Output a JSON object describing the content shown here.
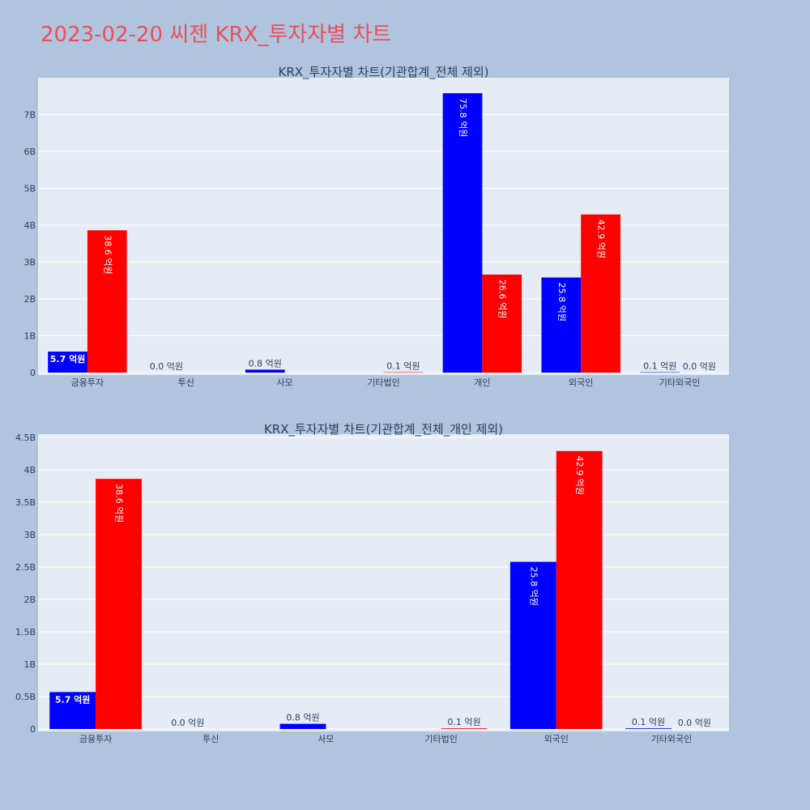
{
  "page_title": "2023-02-20 씨젠 KRX_투자자별 차트",
  "colors": {
    "background": "#b0c4de",
    "plot_bg": "#e5ecf6",
    "buy": "#0000ff",
    "sell": "#ff0000",
    "title": "#e8505b"
  },
  "chart_data": [
    {
      "type": "bar",
      "title": "KRX_투자자별 차트(기관합계_전체 제외)",
      "categories": [
        "금융투자",
        "투신",
        "사모",
        "기타법인",
        "개인",
        "외국인",
        "기타외국인"
      ],
      "ylim": [
        0,
        8000000000
      ],
      "yticks": [
        0,
        1000000000,
        2000000000,
        3000000000,
        4000000000,
        5000000000,
        6000000000,
        7000000000
      ],
      "ytick_labels": [
        "0",
        "1B",
        "2B",
        "3B",
        "4B",
        "5B",
        "6B",
        "7B"
      ],
      "grid": true,
      "series": [
        {
          "color": "#0000ff",
          "values": [
            570000000,
            0,
            80000000,
            0,
            7580000000,
            2580000000,
            10000000
          ],
          "labels": [
            "5.7 억원",
            "0.0 억원",
            "0.8 억원",
            "",
            "75.8 억원",
            "25.8 억원",
            "0.1 억원"
          ]
        },
        {
          "color": "#ff0000",
          "values": [
            3860000000,
            0,
            0,
            10000000,
            2660000000,
            4290000000,
            0
          ],
          "labels": [
            "38.6 억원",
            "",
            "",
            "0.1 억원",
            "26.6 억원",
            "42.9 억원",
            "0.0 억원"
          ]
        }
      ]
    },
    {
      "type": "bar",
      "title": "KRX_투자자별 차트(기관합계_전체_개인 제외)",
      "categories": [
        "금융투자",
        "투신",
        "사모",
        "기타법인",
        "외국인",
        "기타외국인"
      ],
      "ylim": [
        0,
        4550000000
      ],
      "yticks": [
        0,
        500000000,
        1000000000,
        1500000000,
        2000000000,
        2500000000,
        3000000000,
        3500000000,
        4000000000,
        4500000000
      ],
      "ytick_labels": [
        "0",
        "0.5B",
        "1B",
        "1.5B",
        "2B",
        "2.5B",
        "3B",
        "3.5B",
        "4B",
        "4.5B"
      ],
      "grid": true,
      "series": [
        {
          "color": "#0000ff",
          "values": [
            570000000,
            0,
            80000000,
            0,
            2580000000,
            10000000
          ],
          "labels": [
            "5.7 억원",
            "0.0 억원",
            "0.8 억원",
            "",
            "25.8 억원",
            "0.1 억원"
          ]
        },
        {
          "color": "#ff0000",
          "values": [
            3860000000,
            0,
            0,
            10000000,
            4290000000,
            0
          ],
          "labels": [
            "38.6 억원",
            "",
            "",
            "0.1 억원",
            "42.9 억원",
            "0.0 억원"
          ]
        }
      ]
    }
  ]
}
